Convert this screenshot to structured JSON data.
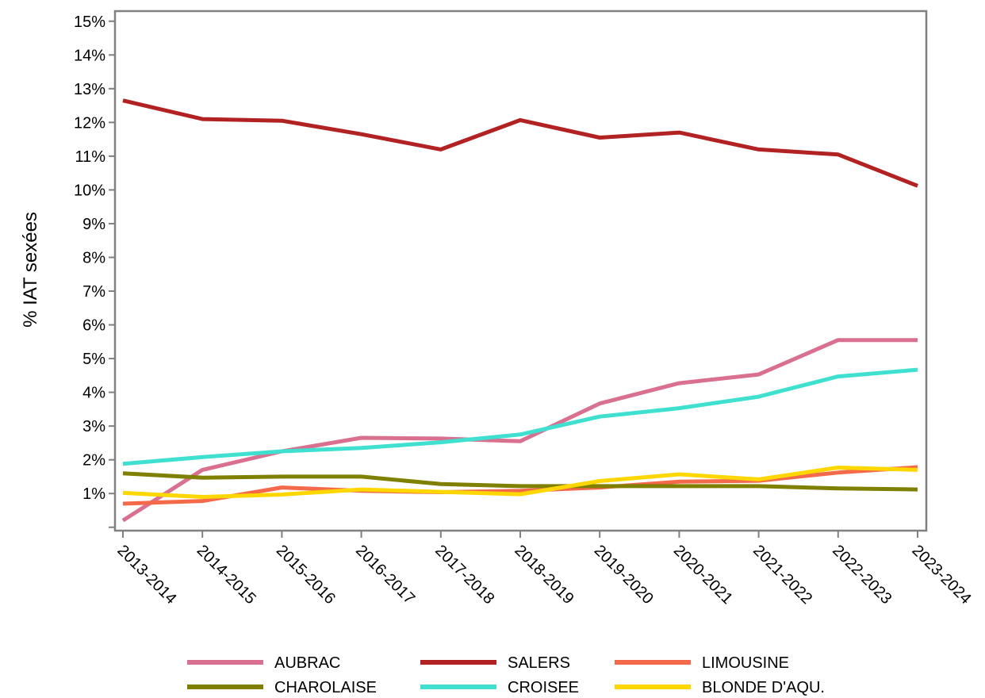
{
  "chart_data": {
    "type": "line",
    "title": "",
    "xlabel": "",
    "ylabel": "% IAT sexées",
    "categories": [
      "2013-2014",
      "2014-2015",
      "2015-2016",
      "2016-2017",
      "2017-2018",
      "2018-2019",
      "2019-2020",
      "2020-2021",
      "2021-2022",
      "2022-2023",
      "2023-2024"
    ],
    "y_ticks": [
      {
        "value": 1,
        "label": "1%"
      },
      {
        "value": 2,
        "label": "2%"
      },
      {
        "value": 3,
        "label": "3%"
      },
      {
        "value": 4,
        "label": "4%"
      },
      {
        "value": 5,
        "label": "5%"
      },
      {
        "value": 6,
        "label": "6%"
      },
      {
        "value": 7,
        "label": "7%"
      },
      {
        "value": 8,
        "label": "8%"
      },
      {
        "value": 9,
        "label": "9%"
      },
      {
        "value": 10,
        "label": "10%"
      },
      {
        "value": 11,
        "label": "11%"
      },
      {
        "value": 12,
        "label": "12%"
      },
      {
        "value": 13,
        "label": "13%"
      },
      {
        "value": 14,
        "label": "14%"
      },
      {
        "value": 15,
        "label": "15%"
      }
    ],
    "ylim": [
      -0.1,
      15.3
    ],
    "grid": false,
    "legend_position": "bottom",
    "series": [
      {
        "name": "AUBRAC",
        "color": "#d9708f",
        "values": [
          0.2,
          1.7,
          2.25,
          2.65,
          2.63,
          2.55,
          3.67,
          4.27,
          4.53,
          5.55,
          5.55
        ]
      },
      {
        "name": "SALERS",
        "color": "#b22222",
        "values": [
          12.65,
          12.1,
          12.05,
          11.65,
          11.2,
          12.07,
          11.55,
          11.7,
          11.2,
          11.05,
          10.12
        ]
      },
      {
        "name": "LIMOUSINE",
        "color": "#f4694a",
        "values": [
          0.7,
          0.78,
          1.18,
          1.08,
          1.04,
          1.08,
          1.18,
          1.35,
          1.38,
          1.62,
          1.78
        ]
      },
      {
        "name": "CHAROLAISE",
        "color": "#7f7f00",
        "values": [
          1.6,
          1.47,
          1.5,
          1.5,
          1.28,
          1.22,
          1.22,
          1.22,
          1.22,
          1.15,
          1.12
        ]
      },
      {
        "name": "CROISEE",
        "color": "#40e0d0",
        "values": [
          1.88,
          2.08,
          2.25,
          2.35,
          2.52,
          2.75,
          3.28,
          3.53,
          3.87,
          4.47,
          4.67
        ]
      },
      {
        "name": "BLONDE D'AQU.",
        "color": "#ffd700",
        "values": [
          1.02,
          0.9,
          0.97,
          1.12,
          1.05,
          0.98,
          1.37,
          1.57,
          1.42,
          1.77,
          1.7
        ]
      }
    ]
  }
}
